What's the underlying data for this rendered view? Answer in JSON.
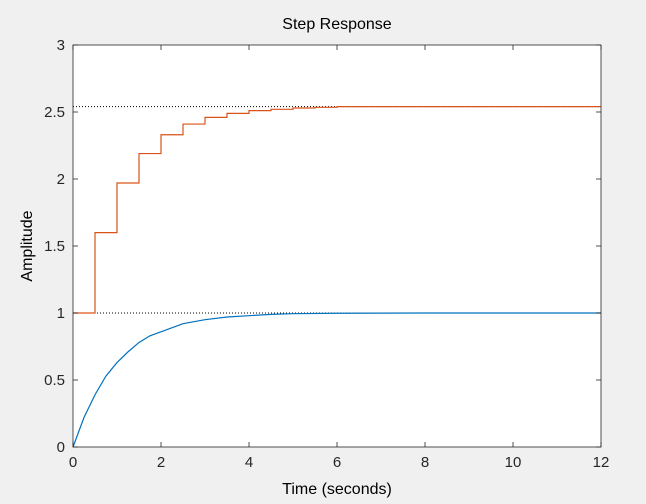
{
  "chart_data": {
    "type": "line",
    "title": "Step Response",
    "xlabel": "Time (seconds)",
    "ylabel": "Amplitude",
    "xlim": [
      0,
      12
    ],
    "ylim": [
      0,
      3
    ],
    "x_ticks": [
      "0",
      "2",
      "4",
      "6",
      "8",
      "10",
      "12"
    ],
    "y_ticks": [
      "0",
      "0.5",
      "1",
      "1.5",
      "2",
      "2.5",
      "3"
    ],
    "grid": false,
    "legend": "none",
    "reference_lines": [
      {
        "y": 1,
        "x": [
          0,
          12
        ],
        "style": "dotted"
      },
      {
        "y": 2.54,
        "x": [
          0,
          12
        ],
        "style": "dotted"
      }
    ],
    "series": [
      {
        "color": "#0072bd",
        "kind": "continuous",
        "x": [
          0,
          0.25,
          0.5,
          0.75,
          1,
          1.25,
          1.5,
          1.75,
          2,
          2.5,
          3,
          3.5,
          4,
          4.5,
          5,
          6,
          7,
          8,
          9,
          10,
          12
        ],
        "y": [
          0,
          0.22,
          0.39,
          0.53,
          0.63,
          0.71,
          0.78,
          0.83,
          0.86,
          0.92,
          0.95,
          0.97,
          0.98,
          0.99,
          0.995,
          0.998,
          0.999,
          1.0,
          1.0,
          1.0,
          1.0
        ]
      },
      {
        "color": "#d95319",
        "kind": "stairs",
        "x": [
          0,
          0.5,
          1,
          1.5,
          2,
          2.5,
          3,
          3.5,
          4,
          4.5,
          5,
          5.5,
          6,
          7,
          8,
          12
        ],
        "y": [
          1,
          1.6,
          1.97,
          2.19,
          2.33,
          2.41,
          2.46,
          2.49,
          2.51,
          2.52,
          2.53,
          2.535,
          2.54,
          2.54,
          2.54,
          2.54
        ]
      }
    ]
  }
}
